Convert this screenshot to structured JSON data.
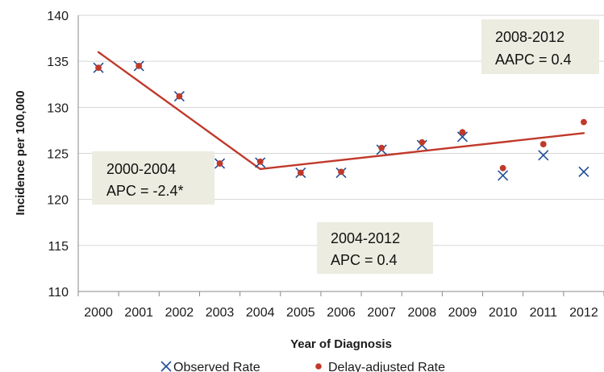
{
  "chart_data": {
    "type": "scatter",
    "title": "",
    "xlabel": "Year of Diagnosis",
    "ylabel": "Incidence per 100,000",
    "categories": [
      "2000",
      "2001",
      "2002",
      "2003",
      "2004",
      "2005",
      "2006",
      "2007",
      "2008",
      "2009",
      "2010",
      "2011",
      "2012"
    ],
    "y_ticks": [
      110,
      115,
      120,
      125,
      130,
      135,
      140
    ],
    "ylim": [
      110,
      140
    ],
    "grid": true,
    "legend_position": "bottom",
    "series": [
      {
        "name": "Observed Rate",
        "marker": "x",
        "color": "#1f4e96",
        "values": [
          134.3,
          134.5,
          131.2,
          123.9,
          124.0,
          122.9,
          122.9,
          125.4,
          125.9,
          126.8,
          122.6,
          124.8,
          123.0
        ]
      },
      {
        "name": "Delay-adjusted Rate",
        "marker": "circle",
        "color": "#c0392b",
        "values": [
          134.3,
          134.5,
          131.2,
          123.9,
          124.1,
          122.9,
          123.0,
          125.6,
          126.2,
          127.3,
          123.4,
          126.0,
          128.4
        ]
      }
    ],
    "trend": {
      "color": "#c0392b",
      "segments": [
        {
          "x": [
            "2000",
            "2004"
          ],
          "y": [
            136.0,
            123.3
          ]
        },
        {
          "x": [
            "2004",
            "2012"
          ],
          "y": [
            123.3,
            127.2
          ]
        }
      ]
    },
    "annotations": [
      {
        "id": "seg1",
        "lines": [
          "2000-2004",
          "APC = -2.4*"
        ]
      },
      {
        "id": "seg2",
        "lines": [
          "2004-2012",
          "APC = 0.4"
        ]
      },
      {
        "id": "overall",
        "lines": [
          "2008-2012",
          "AAPC = 0.4"
        ]
      }
    ]
  }
}
